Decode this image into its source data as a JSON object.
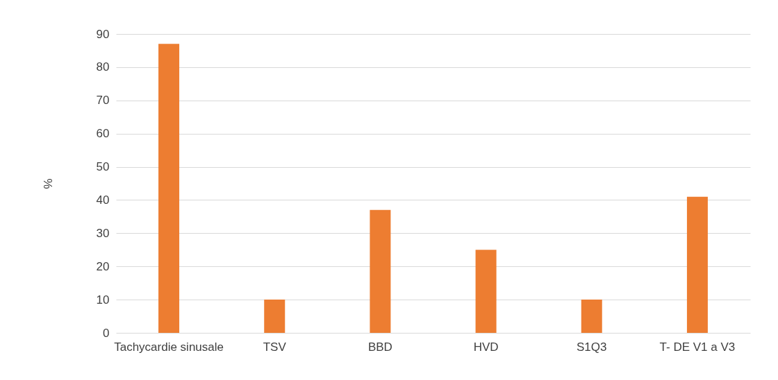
{
  "chart_data": {
    "type": "bar",
    "ylabel": "%",
    "categories": [
      "Tachycardie sinusale",
      "TSV",
      "BBD",
      "HVD",
      "S1Q3",
      "T- DE V1 a V3"
    ],
    "series": [
      {
        "color": "#ed7d31",
        "values": [
          87,
          10,
          37,
          25,
          10,
          41
        ]
      }
    ],
    "ylim": [
      0,
      90
    ],
    "yticks": [
      0,
      10,
      20,
      30,
      40,
      50,
      60,
      70,
      80,
      90
    ],
    "grid": "y"
  }
}
